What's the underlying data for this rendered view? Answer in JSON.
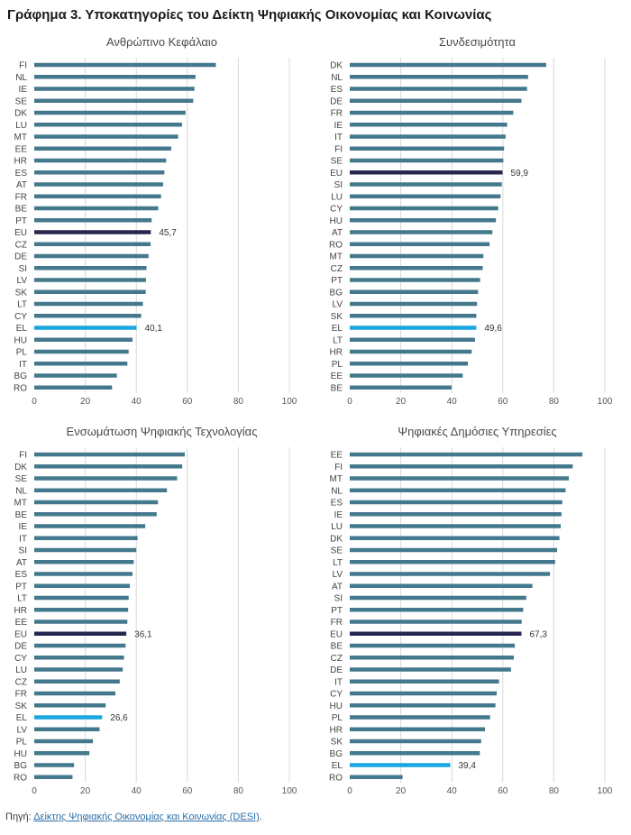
{
  "title": "Γράφημα 3. Υποκατηγορίες του Δείκτη Ψηφιακής Οικονομίας και Κοινωνίας",
  "source": {
    "prefix": "Πηγή: ",
    "link_text": "Δείκτης Ψηφιακής Οικονομίας και Κοινωνίας (DESI)",
    "suffix": "."
  },
  "colors": {
    "bar": "#44788d",
    "eu": "#262650",
    "el": "#1aa7df",
    "grid": "#d9d9d9"
  },
  "chart_data": [
    {
      "type": "bar",
      "orientation": "horizontal",
      "title": "Ανθρώπινο Κεφάλαιο",
      "xlim": [
        0,
        100
      ],
      "ticks": [
        0,
        20,
        40,
        60,
        80,
        100
      ],
      "categories": [
        "FI",
        "NL",
        "IE",
        "SE",
        "DK",
        "LU",
        "MT",
        "EE",
        "HR",
        "ES",
        "AT",
        "FR",
        "BE",
        "PT",
        "EU",
        "CZ",
        "DE",
        "SI",
        "LV",
        "SK",
        "LT",
        "CY",
        "EL",
        "HU",
        "PL",
        "IT",
        "BG",
        "RO"
      ],
      "values": [
        71.2,
        63.2,
        62.8,
        62.3,
        59.3,
        57.9,
        56.4,
        53.7,
        51.7,
        51.0,
        50.5,
        49.7,
        48.6,
        46.0,
        45.7,
        45.6,
        44.8,
        44.0,
        43.8,
        43.7,
        42.6,
        41.9,
        40.1,
        38.5,
        37.0,
        36.5,
        32.4,
        30.5
      ],
      "labels": {
        "EU": "45,7",
        "EL": "40,1"
      }
    },
    {
      "type": "bar",
      "orientation": "horizontal",
      "title": "Συνδεσιμότητα",
      "xlim": [
        0,
        100
      ],
      "ticks": [
        0,
        20,
        40,
        60,
        80,
        100
      ],
      "categories": [
        "DK",
        "NL",
        "ES",
        "DE",
        "FR",
        "IE",
        "IT",
        "FI",
        "SE",
        "EU",
        "SI",
        "LU",
        "CY",
        "HU",
        "AT",
        "RO",
        "MT",
        "CZ",
        "PT",
        "BG",
        "LV",
        "SK",
        "EL",
        "LT",
        "HR",
        "PL",
        "EE",
        "BE"
      ],
      "values": [
        77.0,
        69.9,
        69.5,
        67.3,
        64.1,
        61.7,
        61.1,
        60.5,
        60.2,
        59.9,
        59.6,
        59.1,
        58.2,
        57.3,
        55.9,
        54.8,
        52.4,
        52.1,
        51.1,
        50.3,
        49.9,
        49.6,
        49.6,
        49.1,
        47.8,
        46.3,
        44.3,
        39.9
      ],
      "labels": {
        "EU": "59,9",
        "EL": "49,6"
      }
    },
    {
      "type": "bar",
      "orientation": "horizontal",
      "title": "Ενσωμάτωση Ψηφιακής Τεχνολογίας",
      "xlim": [
        0,
        100
      ],
      "ticks": [
        0,
        20,
        40,
        60,
        80,
        100
      ],
      "categories": [
        "FI",
        "DK",
        "SE",
        "NL",
        "MT",
        "BE",
        "IE",
        "IT",
        "SI",
        "AT",
        "ES",
        "PT",
        "LT",
        "HR",
        "EE",
        "EU",
        "DE",
        "CY",
        "LU",
        "CZ",
        "FR",
        "SK",
        "EL",
        "LV",
        "PL",
        "HU",
        "BG",
        "RO"
      ],
      "values": [
        59.0,
        58.0,
        56.0,
        52.0,
        48.5,
        48.0,
        43.5,
        40.5,
        40.0,
        39.0,
        38.5,
        37.5,
        37.0,
        36.8,
        36.5,
        36.1,
        35.8,
        35.2,
        34.7,
        33.5,
        31.8,
        28.0,
        26.6,
        25.6,
        23.0,
        21.6,
        15.6,
        15.0
      ],
      "labels": {
        "EU": "36,1",
        "EL": "26,6"
      }
    },
    {
      "type": "bar",
      "orientation": "horizontal",
      "title": "Ψηφιακές Δημόσιες Υπηρεσίες",
      "xlim": [
        0,
        100
      ],
      "ticks": [
        0,
        20,
        40,
        60,
        80,
        100
      ],
      "categories": [
        "EE",
        "FI",
        "MT",
        "NL",
        "ES",
        "IE",
        "LU",
        "DK",
        "SE",
        "LT",
        "LV",
        "AT",
        "SI",
        "PT",
        "FR",
        "EU",
        "BE",
        "CZ",
        "DE",
        "IT",
        "CY",
        "HU",
        "PL",
        "HR",
        "SK",
        "BG",
        "EL",
        "RO"
      ],
      "values": [
        91.2,
        87.4,
        85.9,
        84.6,
        83.3,
        83.0,
        82.7,
        82.2,
        81.3,
        80.5,
        78.5,
        71.6,
        69.2,
        68.0,
        67.4,
        67.3,
        64.7,
        64.3,
        63.2,
        58.5,
        57.6,
        57.1,
        55.0,
        53.0,
        51.5,
        51.0,
        39.4,
        20.7
      ],
      "labels": {
        "EU": "67,3",
        "EL": "39,4"
      }
    }
  ]
}
